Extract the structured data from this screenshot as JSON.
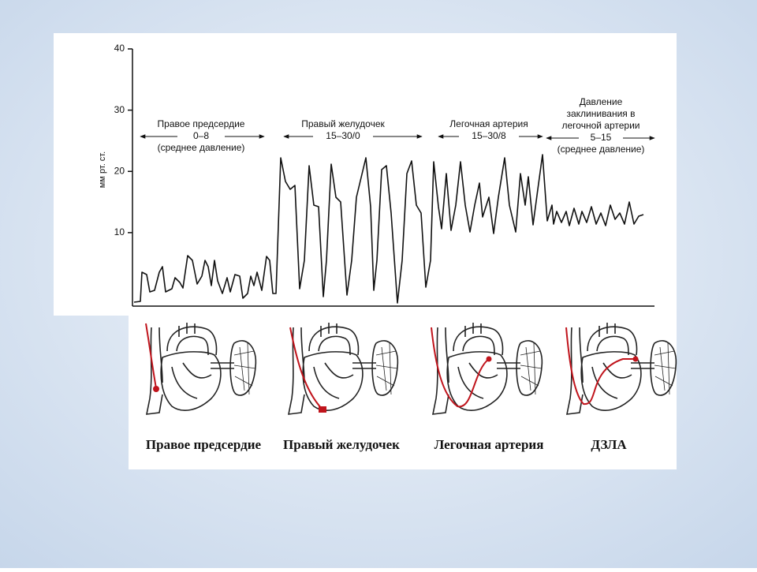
{
  "axis": {
    "label": "мм рт. ст.",
    "ylim": [
      -2,
      40
    ],
    "yticks": [
      10,
      20,
      30,
      40
    ]
  },
  "sections": [
    {
      "lines": [
        "Правое предсердие",
        "0–8",
        "(среднее давление)"
      ]
    },
    {
      "lines": [
        "Правый желудочек",
        "15–30/0"
      ]
    },
    {
      "lines": [
        "Легочная артерия",
        "15–30/8"
      ]
    },
    {
      "lines": [
        "Давление",
        "заклинивания в",
        "легочной артерии",
        "5–15",
        "(среднее давление)"
      ]
    }
  ],
  "captions": [
    "Правое предсердие",
    "Правый желудочек",
    "Легочная артерия",
    "ДЗЛА"
  ]
}
